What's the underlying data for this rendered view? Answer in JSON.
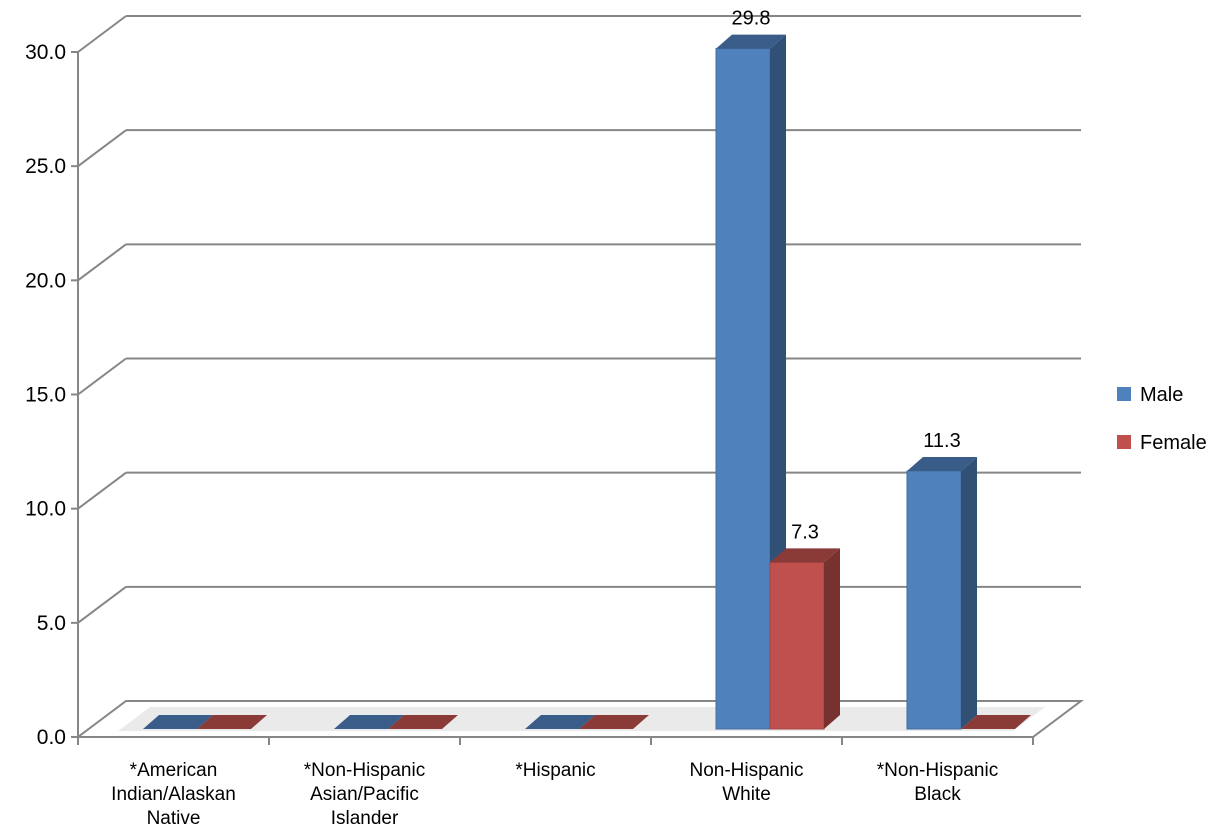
{
  "chart_data": {
    "type": "bar",
    "categories": [
      [
        "*American",
        "Indian/Alaskan",
        "Native"
      ],
      [
        "*Non-Hispanic",
        "Asian/Pacific",
        "Islander"
      ],
      [
        "*Hispanic"
      ],
      [
        "Non-Hispanic",
        "White"
      ],
      [
        "*Non-Hispanic",
        "Black"
      ]
    ],
    "series": [
      {
        "name": "Male",
        "color": "#4F81BD",
        "values": [
          0,
          0,
          0,
          29.8,
          11.3
        ]
      },
      {
        "name": "Female",
        "color": "#C0504D",
        "values": [
          0,
          0,
          0,
          7.3,
          0
        ]
      }
    ],
    "data_labels": [
      {
        "series": 0,
        "index": 3,
        "text": "29.8"
      },
      {
        "series": 0,
        "index": 4,
        "text": "11.3"
      },
      {
        "series": 1,
        "index": 3,
        "text": "7.3"
      }
    ],
    "yticks": [
      "0.0",
      "5.0",
      "10.0",
      "15.0",
      "20.0",
      "25.0",
      "30.0"
    ],
    "ylim": [
      0,
      30
    ],
    "grid": true,
    "legend_position": "right",
    "style": "3d-column"
  }
}
